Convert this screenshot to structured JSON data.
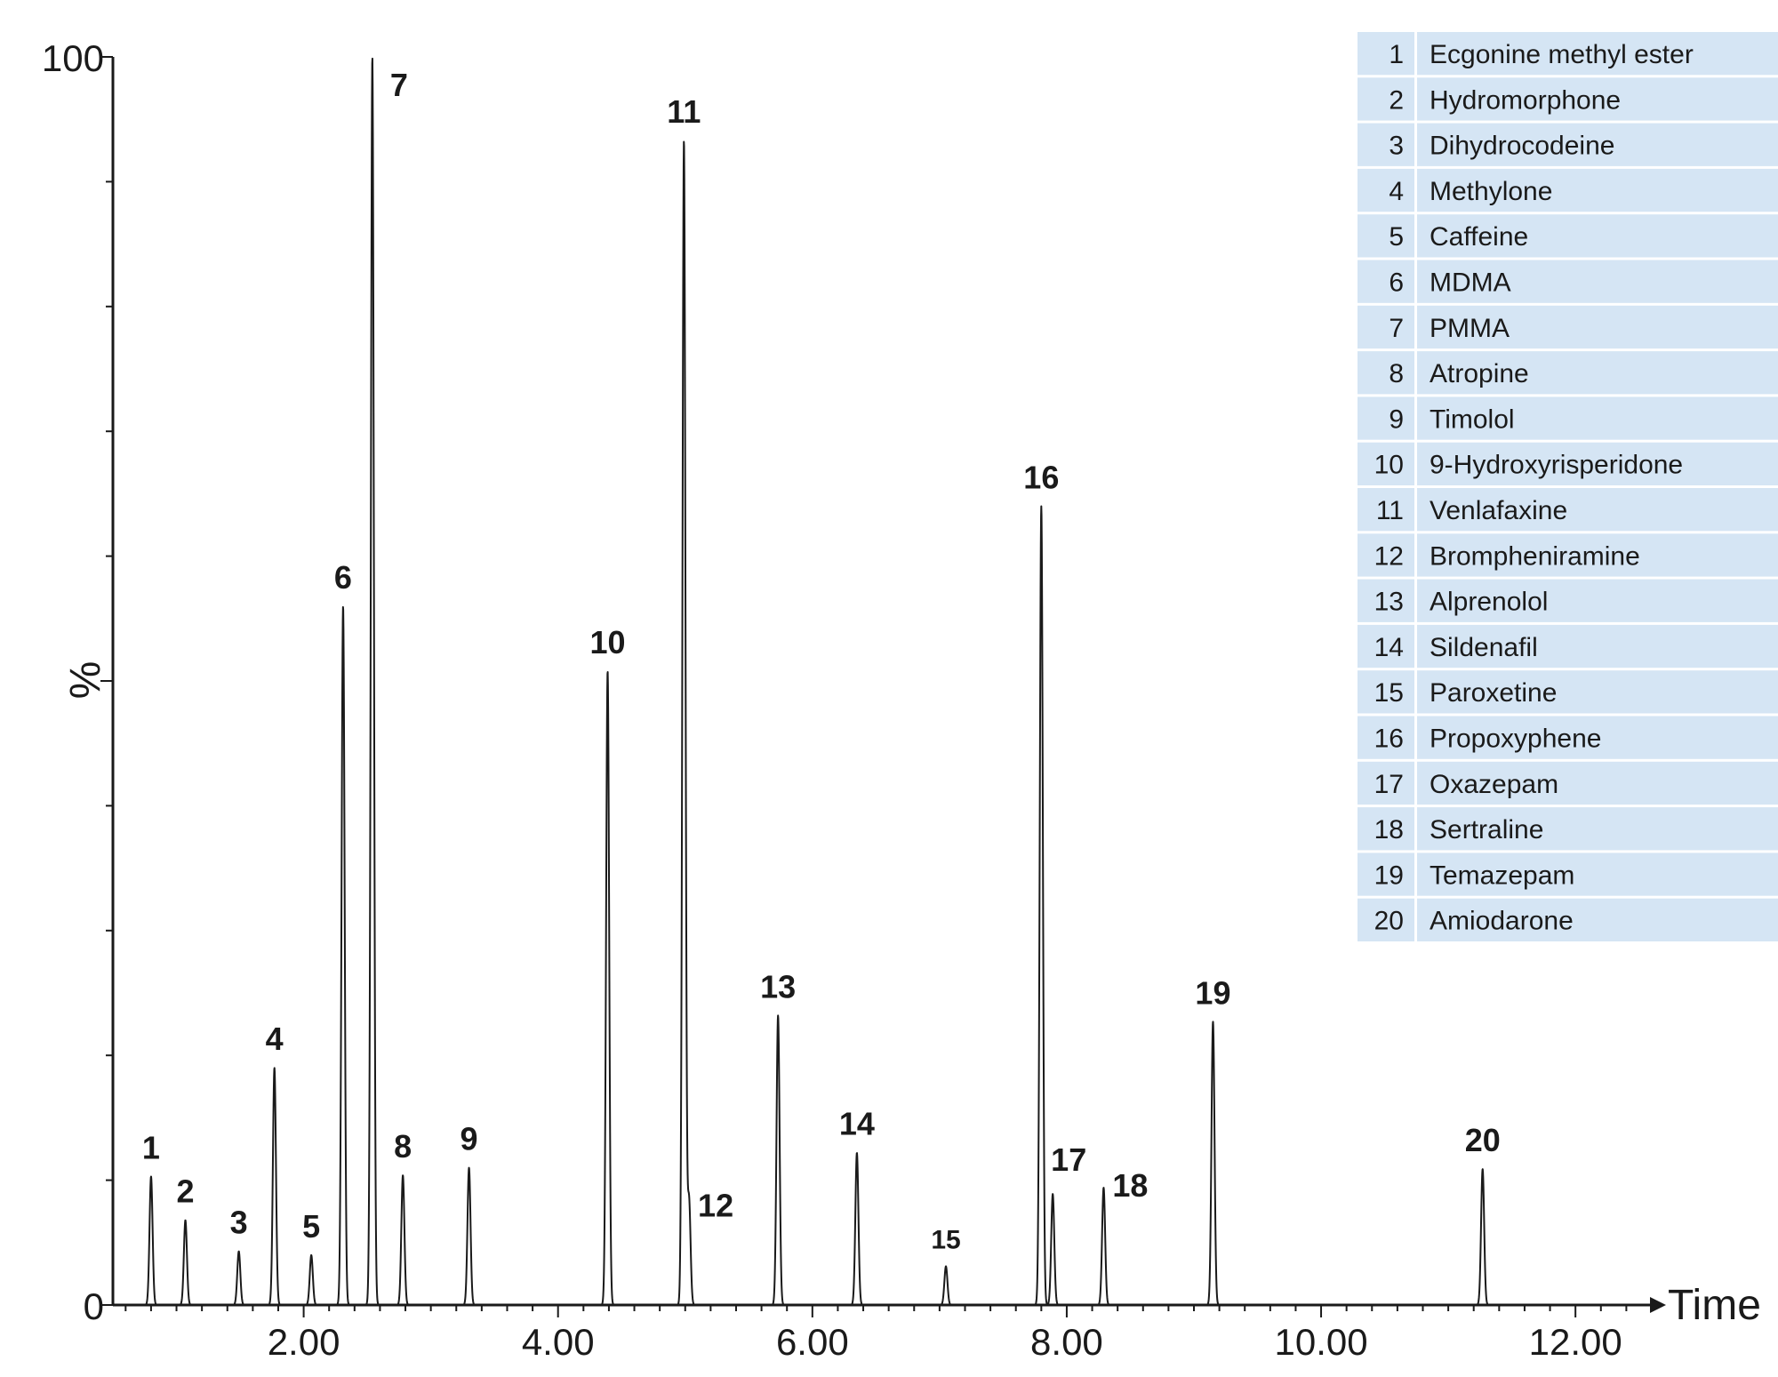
{
  "chart_data": {
    "type": "line",
    "title": "",
    "xlabel": "Time",
    "ylabel": "%",
    "xlim": [
      0.5,
      12.6
    ],
    "ylim": [
      0,
      100
    ],
    "x_ticks": [
      {
        "value": 2,
        "label": "2.00"
      },
      {
        "value": 4,
        "label": "4.00"
      },
      {
        "value": 6,
        "label": "6.00"
      },
      {
        "value": 8,
        "label": "8.00"
      },
      {
        "value": 10,
        "label": "10.00"
      },
      {
        "value": 12,
        "label": "12.00"
      }
    ],
    "y_ticks": [
      {
        "value": 0,
        "label": "0"
      },
      {
        "value": 100,
        "label": "100"
      }
    ],
    "grid": false,
    "legend_position": "top-right",
    "line_color": "#1a1a1a",
    "legend_background": "#d5e5f4",
    "peaks": [
      {
        "id": "1",
        "compound": "Ecgonine methyl ester",
        "time": 0.8,
        "height": 10.3
      },
      {
        "id": "2",
        "compound": "Hydromorphone",
        "time": 1.07,
        "height": 6.8
      },
      {
        "id": "3",
        "compound": "Dihydrocodeine",
        "time": 1.49,
        "height": 4.3
      },
      {
        "id": "4",
        "compound": "Methylone",
        "time": 1.77,
        "height": 19.0
      },
      {
        "id": "5",
        "compound": "Caffeine",
        "time": 2.06,
        "height": 4.0
      },
      {
        "id": "6",
        "compound": "MDMA",
        "time": 2.31,
        "height": 56.0
      },
      {
        "id": "7",
        "compound": "PMMA",
        "time": 2.54,
        "height": 100.0
      },
      {
        "id": "8",
        "compound": "Atropine",
        "time": 2.78,
        "height": 10.4
      },
      {
        "id": "9",
        "compound": "Timolol",
        "time": 3.3,
        "height": 11.0
      },
      {
        "id": "10",
        "compound": "9-Hydroxyrisperidone",
        "time": 4.39,
        "height": 50.8
      },
      {
        "id": "11",
        "compound": "Venlafaxine",
        "time": 4.99,
        "height": 93.3
      },
      {
        "id": "12",
        "compound": "Brompheniramine",
        "time": 5.03,
        "height": 8.5
      },
      {
        "id": "13",
        "compound": "Alprenolol",
        "time": 5.73,
        "height": 23.2
      },
      {
        "id": "14",
        "compound": "Sildenafil",
        "time": 6.35,
        "height": 12.2
      },
      {
        "id": "15",
        "compound": "Paroxetine",
        "time": 7.05,
        "height": 3.1
      },
      {
        "id": "16",
        "compound": "Propoxyphene",
        "time": 7.8,
        "height": 64.0
      },
      {
        "id": "17",
        "compound": "Oxazepam",
        "time": 7.89,
        "height": 8.9
      },
      {
        "id": "18",
        "compound": "Sertraline",
        "time": 8.29,
        "height": 9.4
      },
      {
        "id": "19",
        "compound": "Temazepam",
        "time": 9.15,
        "height": 22.7
      },
      {
        "id": "20",
        "compound": "Amiodarone",
        "time": 11.27,
        "height": 10.9
      }
    ]
  }
}
